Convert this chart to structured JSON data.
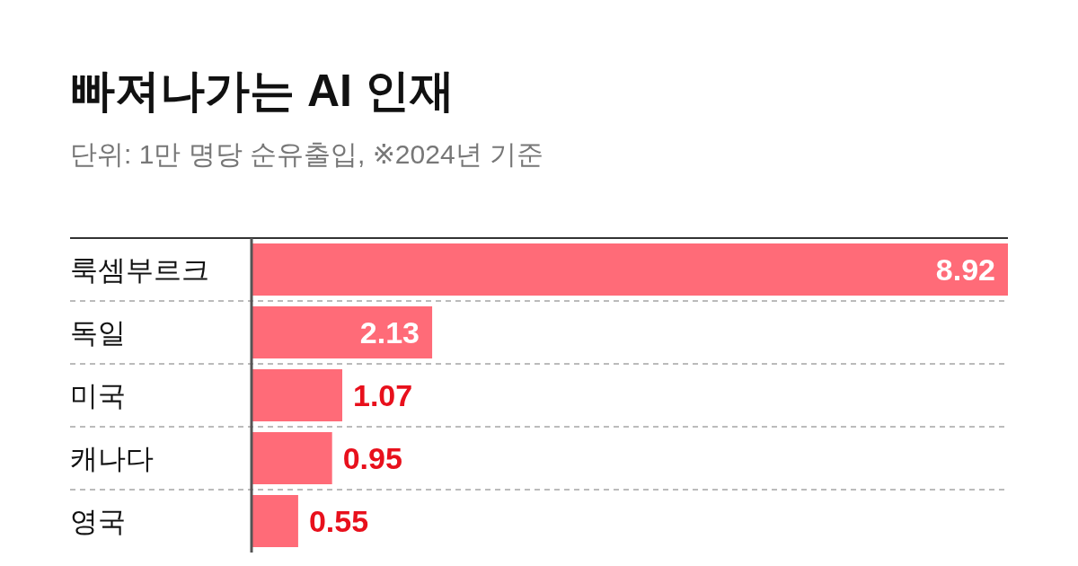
{
  "chart_data": {
    "type": "bar",
    "orientation": "horizontal",
    "title": "빠져나가는 AI 인재",
    "subtitle": "단위: 1만 명당 순유출입, ※2024년 기준",
    "categories": [
      "룩셈부르크",
      "독일",
      "미국",
      "캐나다",
      "영국"
    ],
    "values": [
      8.92,
      2.13,
      1.07,
      0.95,
      0.55
    ],
    "color": "#ff6b78",
    "data_labels": true,
    "grid": "y"
  }
}
